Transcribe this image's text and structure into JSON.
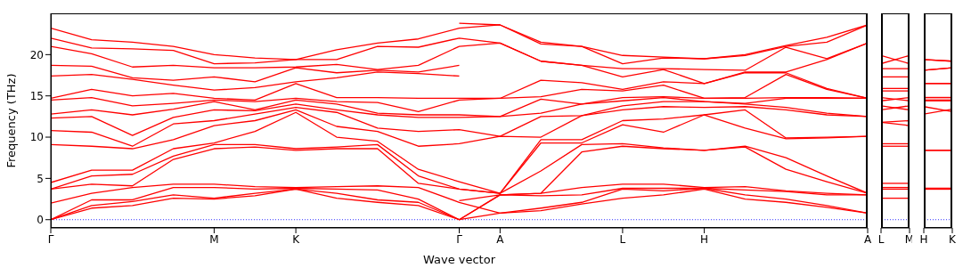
{
  "chart_data": [
    {
      "type": "line",
      "xlabel": "Wave vector",
      "ylabel": "Frequency (THz)",
      "color": "#ff0000",
      "categories": [
        "Γ",
        null,
        null,
        null,
        "M",
        null,
        "K",
        null,
        null,
        null,
        "Γ",
        "A",
        null,
        null,
        "L",
        null,
        "H",
        null,
        null,
        null,
        "A"
      ],
      "ylim": [
        -1,
        25
      ],
      "yticks": [
        0,
        5,
        10,
        15,
        20
      ],
      "ref_lines": [
        {
          "axis": "y",
          "value": 0,
          "color": "#0000ff",
          "line_style": "dotted"
        }
      ],
      "series": [
        {
          "values": [
            0,
            1.4,
            1.7,
            2.6,
            2.5,
            2.9,
            3.7,
            2.6,
            2.1,
            1.7,
            0,
            0.8,
            1.1,
            1.9,
            2.6,
            3.0,
            3.7,
            2.5,
            2.1,
            1.5,
            0.8
          ]
        },
        {
          "values": [
            0,
            1.7,
            2.2,
            3.0,
            2.6,
            3.2,
            3.7,
            3.2,
            2.4,
            2.1,
            0,
            3.0,
            2.9,
            3.0,
            3.8,
            3.8,
            3.8,
            3.6,
            3.4,
            3.0,
            3.0
          ]
        },
        {
          "values": [
            0,
            2.4,
            2.4,
            3.9,
            3.9,
            3.7,
            3.8,
            3.7,
            3.6,
            2.5,
            0,
            3.0,
            3.2,
            8.2,
            8.9,
            8.6,
            8.4,
            8.8,
            6.1,
            4.6,
            3.2
          ]
        },
        {
          "values": [
            2.0,
            3.2,
            3.9,
            4.3,
            4.3,
            4.0,
            3.9,
            4.0,
            4.1,
            3.9,
            2.1,
            0.8,
            1.4,
            2.1,
            3.7,
            3.5,
            3.8,
            3.0,
            2.5,
            1.7,
            0.8
          ]
        },
        {
          "values": [
            3.7,
            4.3,
            4.1,
            7.3,
            8.6,
            8.8,
            8.4,
            8.6,
            8.6,
            4.4,
            3.7,
            3.2,
            5.9,
            9.1,
            9.2,
            8.7,
            8.4,
            8.9,
            7.5,
            5.3,
            3.2
          ]
        },
        {
          "values": [
            3.7,
            5.3,
            5.5,
            7.7,
            9.1,
            9.1,
            8.6,
            8.8,
            9.1,
            5.3,
            3.7,
            3.2,
            9.3,
            9.3,
            11.5,
            10.6,
            12.7,
            11.1,
            9.8,
            9.9,
            10.1
          ]
        },
        {
          "values": [
            4.5,
            6.0,
            6.0,
            8.6,
            9.3,
            10.7,
            13.0,
            10.0,
            9.5,
            6.1,
            4.6,
            3.2,
            9.7,
            9.7,
            12.0,
            12.2,
            12.7,
            13.3,
            9.9,
            10.0,
            10.1
          ]
        },
        {
          "values": [
            9.1,
            8.9,
            8.6,
            9.7,
            11.4,
            12.0,
            13.3,
            11.3,
            10.7,
            8.9,
            9.2,
            10.1,
            10.0,
            12.6,
            13.3,
            13.7,
            13.6,
            13.7,
            13.3,
            12.7,
            12.5
          ]
        },
        {
          "values": [
            10.8,
            10.6,
            8.9,
            11.6,
            12.0,
            12.8,
            13.6,
            13.0,
            11.1,
            10.7,
            10.9,
            10.1,
            12.5,
            12.6,
            13.8,
            14.3,
            14.3,
            14.0,
            13.6,
            12.9,
            12.5
          ]
        },
        {
          "values": [
            12.3,
            12.5,
            10.2,
            12.4,
            13.3,
            13.2,
            14.0,
            13.3,
            12.7,
            12.4,
            12.4,
            12.5,
            12.9,
            14.0,
            14.4,
            14.8,
            14.3,
            14.1,
            14.7,
            14.7,
            14.7
          ]
        },
        {
          "values": [
            12.8,
            13.3,
            12.7,
            13.4,
            14.3,
            13.3,
            14.5,
            14.0,
            12.9,
            12.7,
            12.7,
            12.5,
            14.6,
            14.0,
            14.8,
            14.9,
            14.7,
            14.7,
            14.8,
            14.8,
            14.7
          ]
        },
        {
          "values": [
            14.5,
            14.8,
            13.8,
            14.1,
            14.5,
            14.3,
            14.7,
            14.3,
            14.2,
            13.1,
            14.5,
            14.7,
            14.9,
            15.8,
            15.6,
            16.3,
            14.7,
            14.8,
            17.6,
            15.8,
            14.7
          ]
        },
        {
          "values": [
            14.7,
            15.8,
            15.0,
            15.3,
            14.7,
            14.5,
            16.5,
            14.8,
            14.8,
            14.7,
            14.7,
            14.7,
            16.9,
            16.6,
            15.8,
            16.7,
            16.5,
            17.8,
            17.8,
            15.9,
            14.7
          ]
        },
        {
          "values": [
            21.0,
            20.1,
            18.5,
            18.7,
            18.4,
            18.4,
            18.5,
            18.8,
            18.2,
            18.7,
            21.0,
            21.4,
            19.2,
            18.7,
            17.3,
            18.2,
            16.5,
            17.9,
            17.9,
            19.4,
            21.4
          ]
        },
        {
          "values": [
            22.0,
            20.8,
            20.7,
            20.5,
            18.9,
            19.0,
            19.4,
            19.4,
            21.0,
            20.9,
            22.0,
            21.4,
            19.2,
            18.7,
            18.3,
            18.3,
            18.2,
            18.1,
            20.9,
            19.5,
            21.4
          ]
        },
        {
          "values": [
            23.2,
            21.8,
            21.5,
            21.0,
            20.0,
            19.6,
            19.4,
            20.6,
            21.4,
            21.9,
            23.2,
            23.6,
            21.3,
            21.0,
            18.9,
            19.6,
            19.5,
            19.9,
            21.0,
            21.5,
            23.6
          ]
        },
        {
          "values": [
            17.4,
            17.6,
            17.0,
            16.3,
            15.7,
            16.0,
            16.7,
            17.2,
            17.9,
            17.7,
            17.4,
            null,
            null,
            null,
            null,
            null,
            null,
            null,
            null,
            null,
            null
          ]
        },
        {
          "values": [
            18.7,
            18.6,
            17.2,
            16.9,
            17.3,
            16.7,
            18.4,
            17.8,
            18.1,
            17.9,
            18.7,
            null,
            null,
            null,
            null,
            null,
            null,
            null,
            null,
            null,
            null
          ]
        },
        {
          "values": [
            null,
            null,
            null,
            null,
            null,
            null,
            null,
            null,
            null,
            null,
            2.3,
            3.0,
            3.2,
            3.9,
            4.3,
            4.3,
            3.9,
            4.0,
            3.5,
            3.2,
            3.0
          ]
        },
        {
          "values": [
            null,
            null,
            null,
            null,
            null,
            null,
            null,
            null,
            null,
            null,
            23.8,
            23.6,
            21.5,
            21.0,
            19.9,
            19.7,
            19.5,
            20.0,
            21.1,
            22.1,
            23.6
          ]
        }
      ]
    },
    {
      "type": "line",
      "color": "#ff0000",
      "tick_labels": "x",
      "categories": [
        "L",
        "M"
      ],
      "ylim": [
        -1,
        25
      ],
      "ref_lines": [
        {
          "axis": "y",
          "value": 0,
          "color": "#0000ff",
          "line_style": "dotted"
        }
      ],
      "series": [
        {
          "values": [
            2.6,
            2.6
          ]
        },
        {
          "values": [
            3.7,
            3.7
          ]
        },
        {
          "values": [
            3.9,
            3.9
          ]
        },
        {
          "values": [
            4.4,
            4.4
          ]
        },
        {
          "values": [
            8.9,
            8.9
          ]
        },
        {
          "values": [
            9.2,
            9.2
          ]
        },
        {
          "values": [
            11.8,
            11.4
          ]
        },
        {
          "values": [
            11.8,
            12.0
          ]
        },
        {
          "values": [
            13.8,
            13.3
          ]
        },
        {
          "values": [
            13.3,
            13.8
          ]
        },
        {
          "values": [
            14.4,
            14.8
          ]
        },
        {
          "values": [
            14.8,
            14.4
          ]
        },
        {
          "values": [
            15.6,
            15.6
          ]
        },
        {
          "values": [
            15.9,
            15.9
          ]
        },
        {
          "values": [
            17.3,
            17.3
          ]
        },
        {
          "values": [
            18.3,
            18.3
          ]
        },
        {
          "values": [
            18.9,
            19.9
          ]
        },
        {
          "values": [
            19.9,
            18.9
          ]
        }
      ]
    },
    {
      "type": "line",
      "color": "#ff0000",
      "tick_labels": "x",
      "categories": [
        "H",
        "K"
      ],
      "ylim": [
        -1,
        25
      ],
      "ref_lines": [
        {
          "axis": "y",
          "value": 0,
          "color": "#0000ff",
          "line_style": "dotted"
        }
      ],
      "series": [
        {
          "values": [
            3.7,
            3.7
          ]
        },
        {
          "values": [
            3.7,
            3.7
          ]
        },
        {
          "values": [
            3.8,
            3.8
          ]
        },
        {
          "values": [
            3.8,
            3.8
          ]
        },
        {
          "values": [
            8.4,
            8.4
          ]
        },
        {
          "values": [
            8.4,
            8.4
          ]
        },
        {
          "values": [
            12.8,
            13.4
          ]
        },
        {
          "values": [
            13.7,
            13.1
          ]
        },
        {
          "values": [
            14.4,
            14.4
          ]
        },
        {
          "values": [
            14.5,
            14.5
          ]
        },
        {
          "values": [
            14.8,
            14.8
          ]
        },
        {
          "values": [
            14.8,
            14.8
          ]
        },
        {
          "values": [
            16.5,
            16.5
          ]
        },
        {
          "values": [
            16.5,
            16.5
          ]
        },
        {
          "values": [
            18.1,
            18.4
          ]
        },
        {
          "values": [
            18.1,
            18.4
          ]
        },
        {
          "values": [
            19.4,
            19.2
          ]
        },
        {
          "values": [
            19.4,
            19.2
          ]
        }
      ]
    }
  ]
}
